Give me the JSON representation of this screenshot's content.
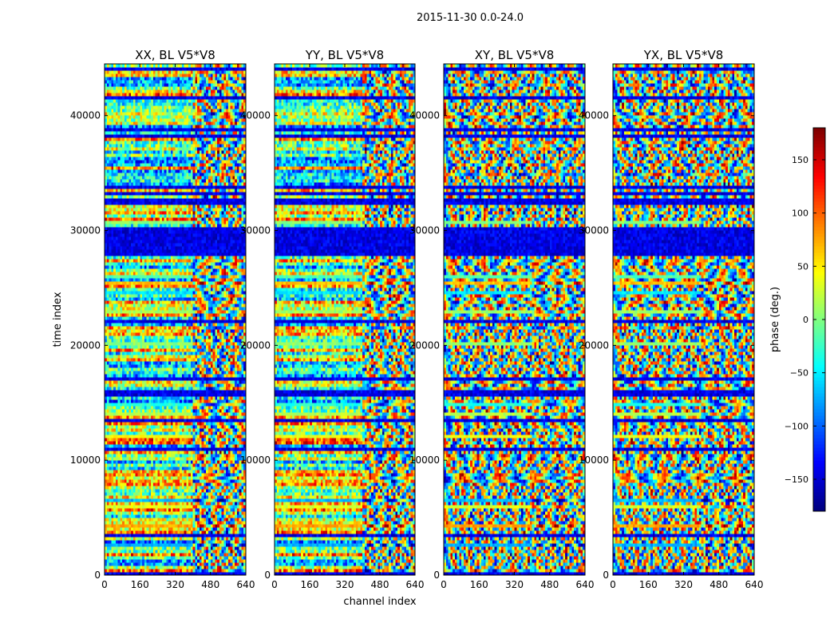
{
  "suptitle": "2015-11-30 0.0-24.0",
  "chart_data": {
    "type": "heatmap",
    "xlabel": "channel index",
    "ylabel": "time index",
    "xlim": [
      0,
      640
    ],
    "ylim": [
      0,
      44500
    ],
    "xticks": [
      "0",
      "160",
      "320",
      "480",
      "640"
    ],
    "yticks": [
      "0",
      "10000",
      "20000",
      "30000",
      "40000"
    ],
    "panels": [
      {
        "title": "XX, BL V5*V8"
      },
      {
        "title": "YY, BL V5*V8"
      },
      {
        "title": "XY, BL V5*V8"
      },
      {
        "title": "YX, BL V5*V8"
      }
    ],
    "colorbar": {
      "label": "phase (deg.)",
      "range": [
        -180,
        180
      ],
      "ticks": [
        "150",
        "100",
        "50",
        "0",
        "−50",
        "−100",
        "−150"
      ],
      "tick_values": [
        150,
        100,
        50,
        0,
        -50,
        -100,
        -150
      ],
      "colormap": "jet"
    }
  }
}
